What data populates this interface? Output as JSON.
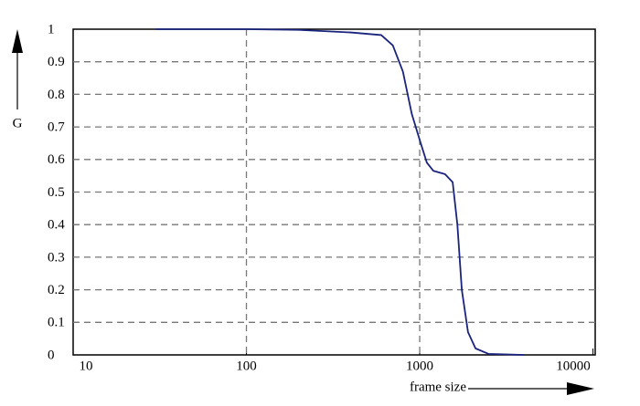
{
  "chart_data": {
    "type": "line",
    "log_x": true,
    "grid": true,
    "xlabel": "frame size",
    "ylabel": "G",
    "xlim": [
      10,
      10300
    ],
    "xticks": [
      10,
      100,
      1000,
      10000
    ],
    "xgrid": [
      100,
      1000
    ],
    "ylim": [
      0,
      1
    ],
    "yticks": [
      0,
      0.1,
      0.2,
      0.3,
      0.4,
      0.5,
      0.6,
      0.7,
      0.8,
      0.9,
      1
    ],
    "x": [
      30,
      100,
      200,
      400,
      600,
      700,
      800,
      900,
      1000,
      1100,
      1200,
      1400,
      1550,
      1650,
      1750,
      1900,
      2100,
      2500,
      4000
    ],
    "series": [
      {
        "color": "#1a237e",
        "values": [
          1,
          1,
          0.998,
          0.99,
          0.982,
          0.95,
          0.87,
          0.74,
          0.66,
          0.59,
          0.565,
          0.555,
          0.53,
          0.4,
          0.2,
          0.07,
          0.02,
          0.003,
          0
        ]
      }
    ]
  }
}
